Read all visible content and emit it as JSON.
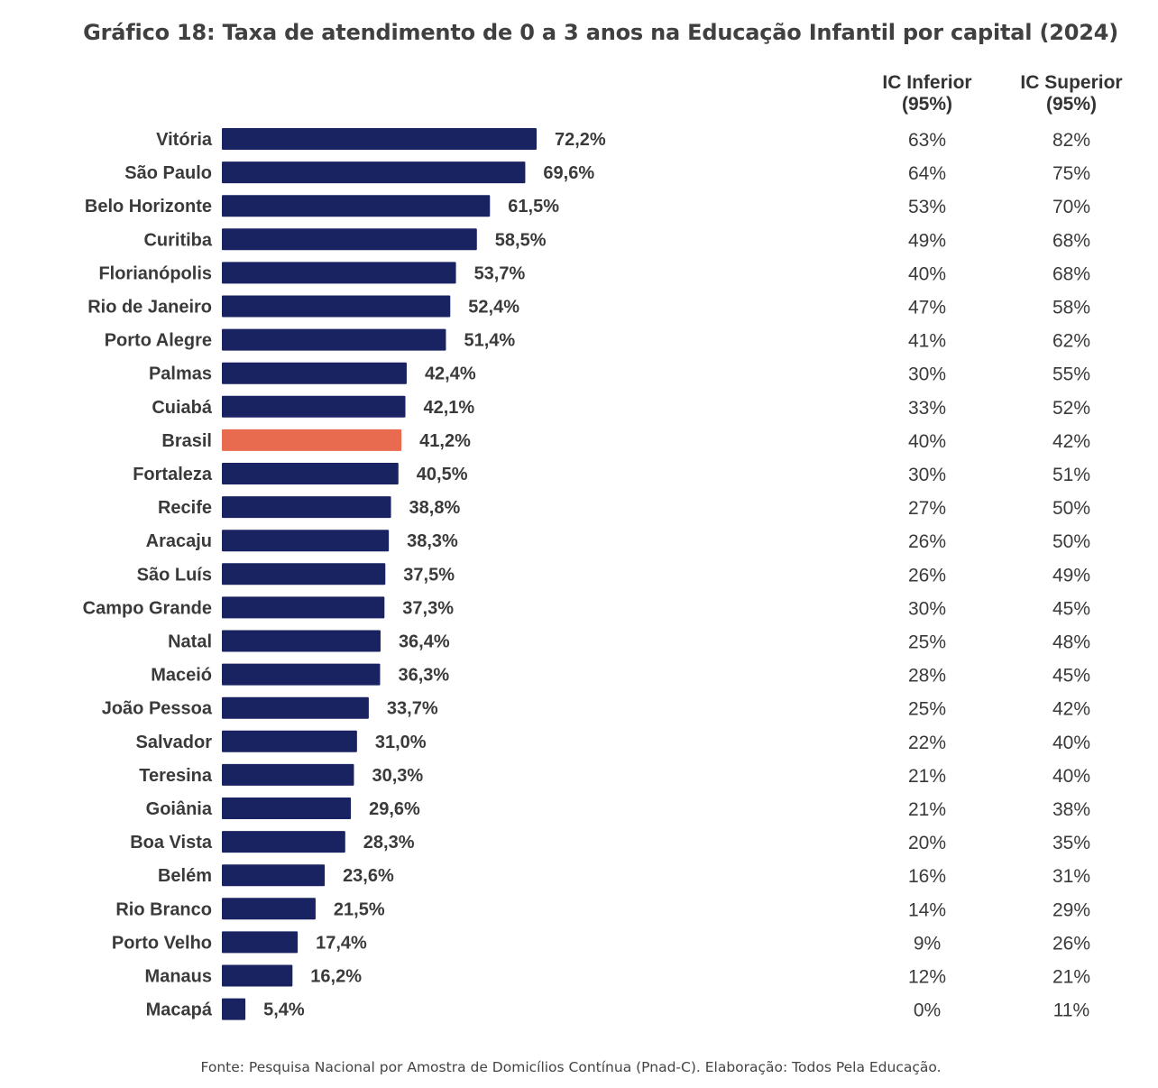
{
  "title": "Gráfico 18: Taxa de atendimento de 0 a 3 anos na Educação Infantil por capital (2024)",
  "columns": {
    "ci_lower": [
      "IC Inferior",
      "(95%)"
    ],
    "ci_upper": [
      "IC Superior",
      "(95%)"
    ]
  },
  "source": "Fonte: Pesquisa Nacional por Amostra de Domicílios Contínua (Pnad-C). Elaboração: Todos Pela Educação.",
  "colors": {
    "bar": "#1a2362",
    "highlight": "#e96b4f"
  },
  "chart_data": {
    "type": "bar",
    "orientation": "horizontal",
    "title": "Gráfico 18: Taxa de atendimento de 0 a 3 anos na Educação Infantil por capital (2024)",
    "highlight_category": "Brasil",
    "categories": [
      "Vitória",
      "São Paulo",
      "Belo Horizonte",
      "Curitiba",
      "Florianópolis",
      "Rio de Janeiro",
      "Porto Alegre",
      "Palmas",
      "Cuiabá",
      "Brasil",
      "Fortaleza",
      "Recife",
      "Aracaju",
      "São Luís",
      "Campo Grande",
      "Natal",
      "Maceió",
      "João Pessoa",
      "Salvador",
      "Teresina",
      "Goiânia",
      "Boa Vista",
      "Belém",
      "Rio Branco",
      "Porto Velho",
      "Manaus",
      "Macapá"
    ],
    "values": [
      72.2,
      69.6,
      61.5,
      58.5,
      53.7,
      52.4,
      51.4,
      42.4,
      42.1,
      41.2,
      40.5,
      38.8,
      38.3,
      37.5,
      37.3,
      36.4,
      36.3,
      33.7,
      31.0,
      30.3,
      29.6,
      28.3,
      23.6,
      21.5,
      17.4,
      16.2,
      5.4
    ],
    "value_labels": [
      "72,2%",
      "69,6%",
      "61,5%",
      "58,5%",
      "53,7%",
      "52,4%",
      "51,4%",
      "42,4%",
      "42,1%",
      "41,2%",
      "40,5%",
      "38,8%",
      "38,3%",
      "37,5%",
      "37,3%",
      "36,4%",
      "36,3%",
      "33,7%",
      "31,0%",
      "30,3%",
      "29,6%",
      "28,3%",
      "23,6%",
      "21,5%",
      "17,4%",
      "16,2%",
      "5,4%"
    ],
    "ci_lower": [
      "63%",
      "64%",
      "53%",
      "49%",
      "40%",
      "47%",
      "41%",
      "30%",
      "33%",
      "40%",
      "30%",
      "27%",
      "26%",
      "26%",
      "30%",
      "25%",
      "28%",
      "25%",
      "22%",
      "21%",
      "21%",
      "20%",
      "16%",
      "14%",
      "9%",
      "12%",
      "0%"
    ],
    "ci_upper": [
      "82%",
      "75%",
      "70%",
      "68%",
      "68%",
      "58%",
      "62%",
      "55%",
      "52%",
      "42%",
      "51%",
      "50%",
      "50%",
      "49%",
      "45%",
      "48%",
      "45%",
      "42%",
      "40%",
      "40%",
      "38%",
      "35%",
      "31%",
      "29%",
      "26%",
      "21%",
      "11%"
    ],
    "xlim": [
      0,
      72.2
    ],
    "grid": false,
    "legend": "none"
  }
}
